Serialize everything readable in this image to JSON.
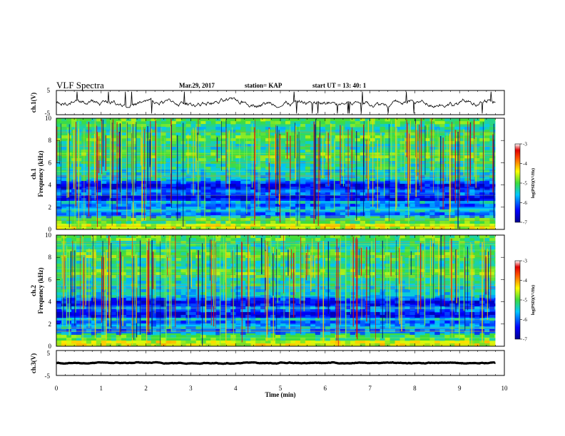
{
  "header": {
    "title": "VLF Spectra",
    "date": "Mar.29, 2017",
    "station": "station= KAP",
    "start": "start  UT =   13: 40: 1"
  },
  "colors": {
    "low": "#00008f",
    "mid": "#2ecc3a",
    "high": "#d01010",
    "trace": "#000000"
  },
  "chart_data": [
    {
      "type": "line",
      "panel": "ch1-waveform",
      "ylabel": "ch.1(V)",
      "xlim": [
        0,
        10
      ],
      "ylim": [
        -5,
        5
      ],
      "yticks": [
        "5",
        "-5"
      ],
      "x_extent": 9.8,
      "mean": 0,
      "amplitude_range": [
        -2,
        2
      ]
    },
    {
      "type": "heatmap",
      "panel": "ch1-spectrogram",
      "ylabel": "Frequency (kHz)",
      "channel_label": "ch.1",
      "xlim": [
        0,
        10
      ],
      "ylim": [
        0,
        10
      ],
      "yticks": [
        "0",
        "2",
        "4",
        "6",
        "8",
        "10"
      ],
      "colorbar": {
        "range": [
          -7,
          -3
        ],
        "ticks": [
          "-3",
          "-4",
          "-5",
          "-6",
          "-7"
        ],
        "label": "log(PSD)(V²/Hz)"
      }
    },
    {
      "type": "heatmap",
      "panel": "ch2-spectrogram",
      "ylabel": "Frequency (kHz)",
      "channel_label": "ch.2",
      "xlim": [
        0,
        10
      ],
      "ylim": [
        0,
        10
      ],
      "yticks": [
        "0",
        "2",
        "4",
        "6",
        "8",
        "10"
      ],
      "colorbar": {
        "range": [
          -7,
          -3
        ],
        "ticks": [
          "-3",
          "-4",
          "-5",
          "-6",
          "-7"
        ],
        "label": "log(PSD)(V²/Hz)"
      }
    },
    {
      "type": "line",
      "panel": "ch3-waveform",
      "ylabel": "ch.3(V)",
      "xlim": [
        0,
        10
      ],
      "ylim": [
        -5,
        5
      ],
      "yticks": [
        "5",
        "-5"
      ],
      "x_extent": 9.8,
      "mean": 0,
      "amplitude_range": [
        -0.3,
        0.3
      ]
    }
  ],
  "xaxis": {
    "label": "Time (min)",
    "ticks": [
      "0",
      "1",
      "2",
      "3",
      "4",
      "5",
      "6",
      "7",
      "8",
      "9",
      "10"
    ]
  }
}
